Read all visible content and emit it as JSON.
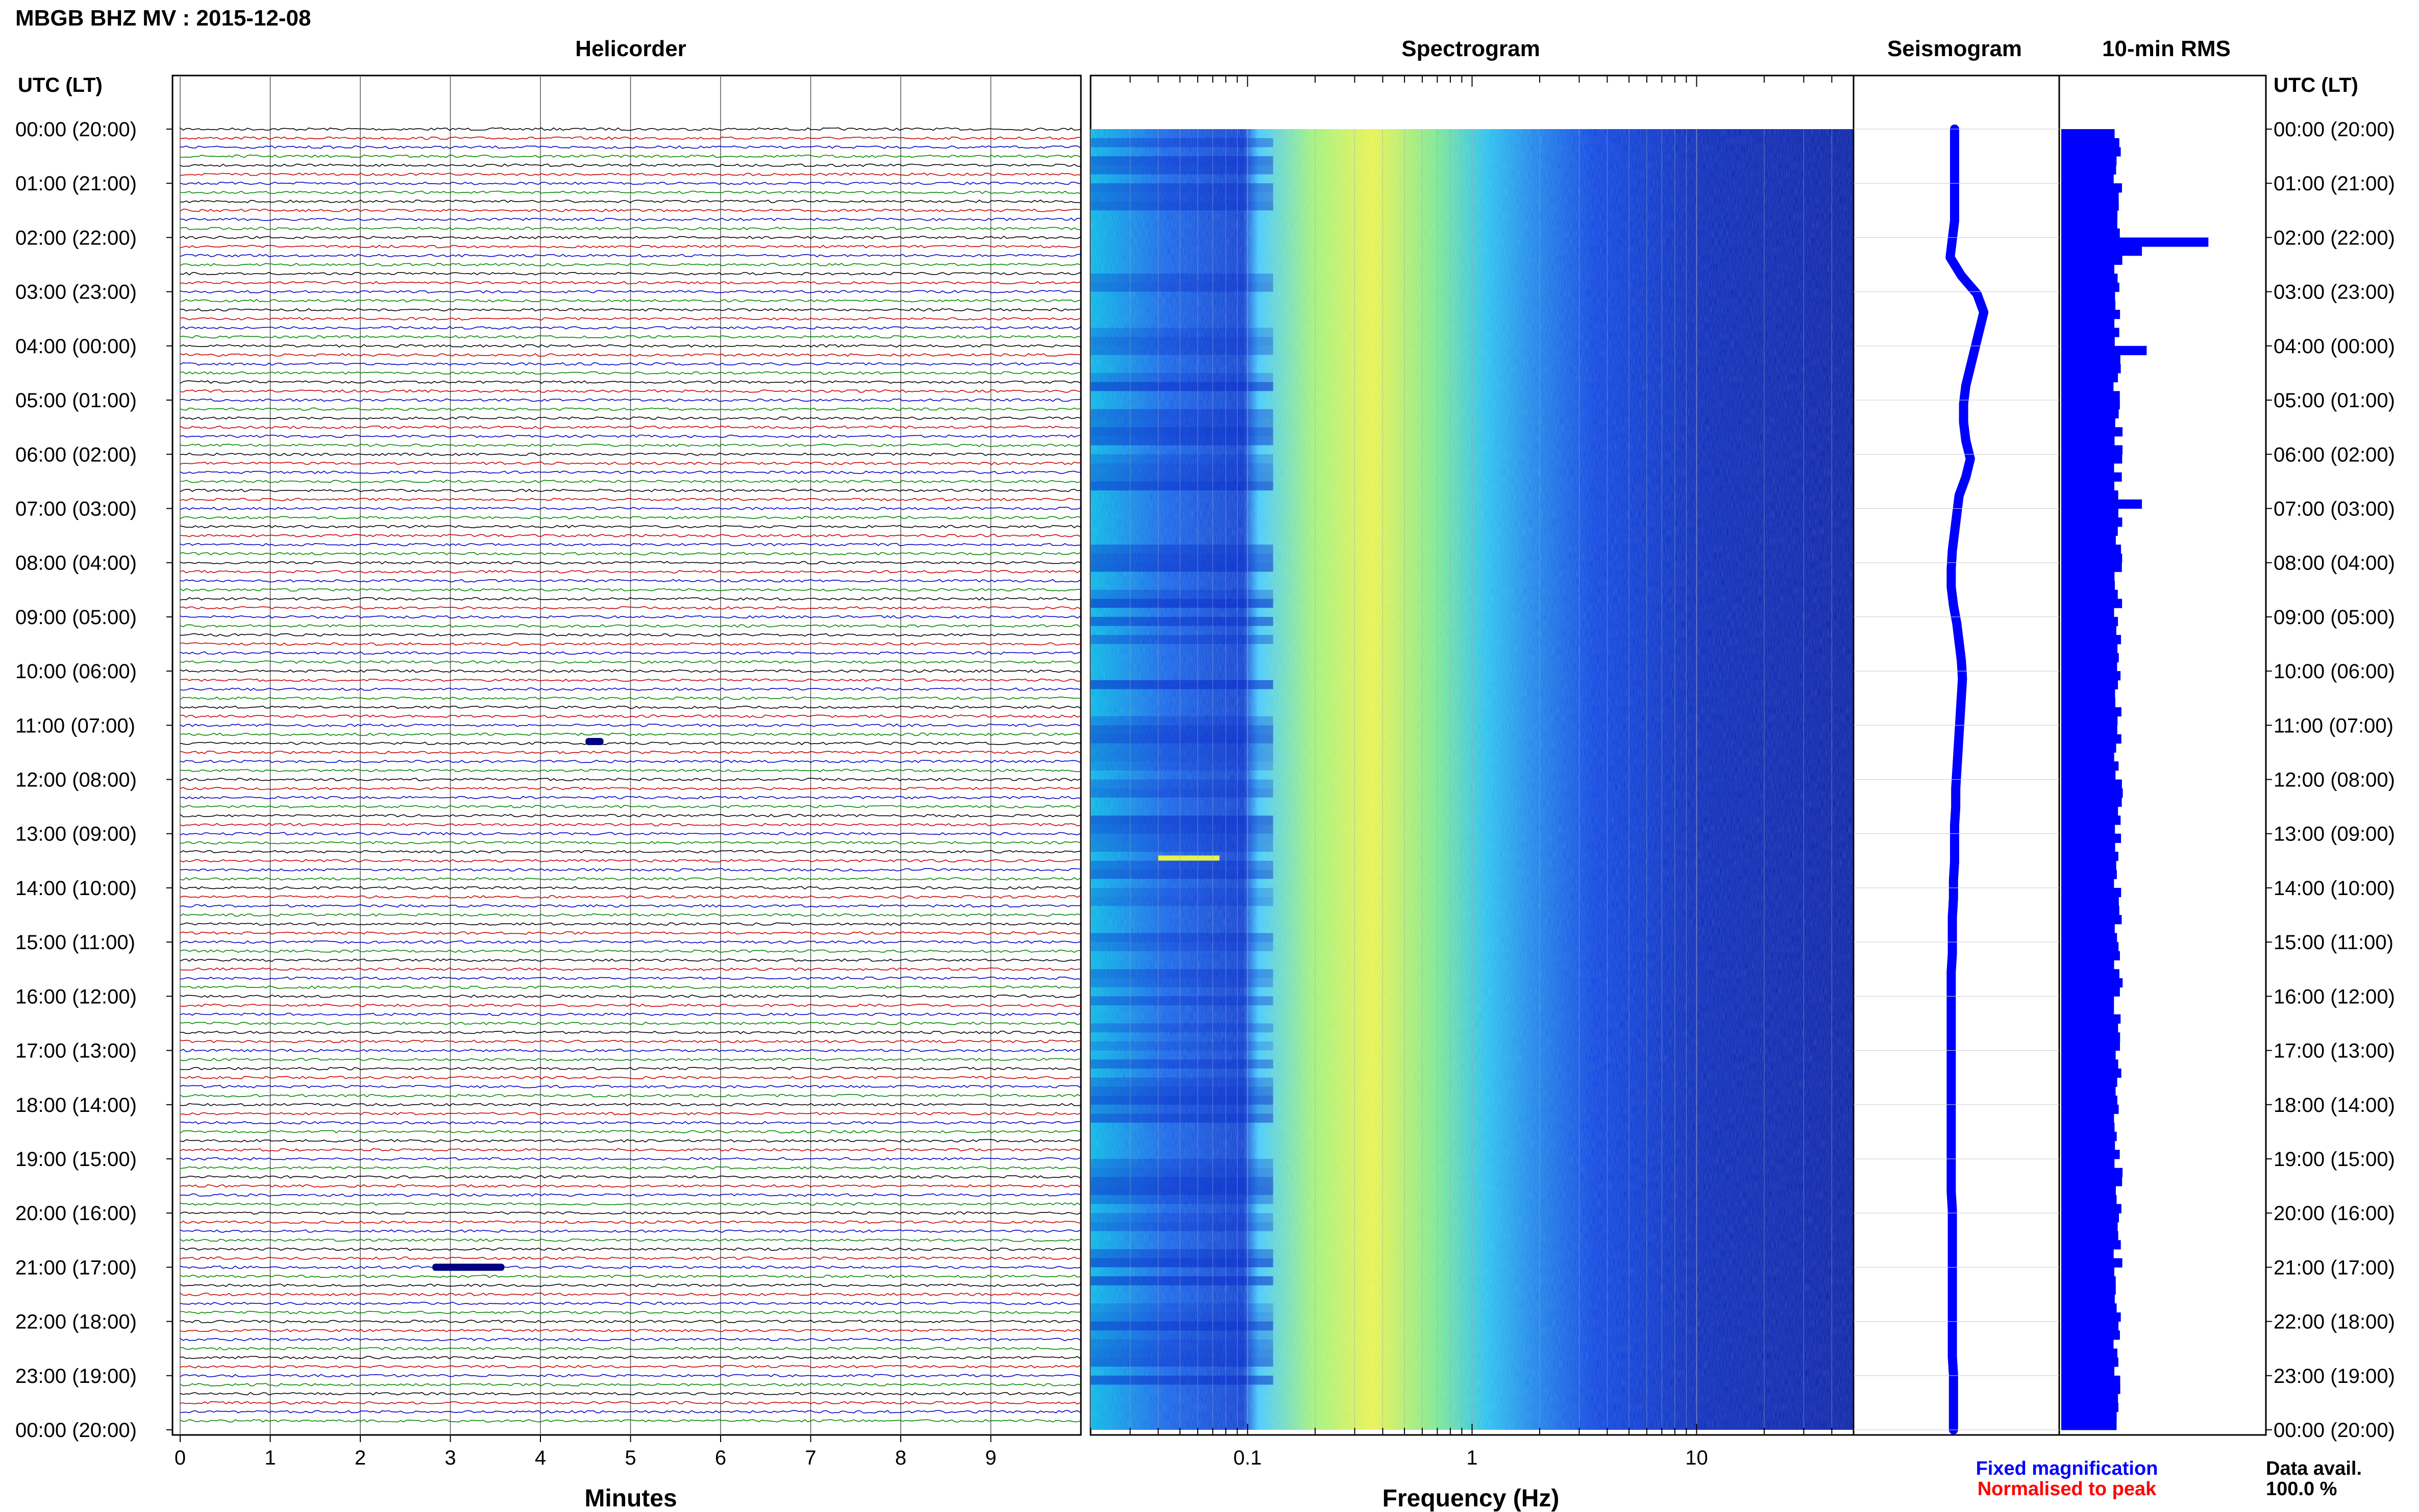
{
  "title": "MBGB BHZ MV : 2015-12-08",
  "colors": {
    "blue": "#0000ff",
    "red": "#ff0000",
    "trace_colors": [
      "#000000",
      "#cc0000",
      "#0000cc",
      "#008800"
    ]
  },
  "panels": {
    "helicorder": "Helicorder",
    "spectrogram": "Spectrogram",
    "seismogram": "Seismogram",
    "rms": "10-min RMS"
  },
  "left_axis_label": "UTC (LT)",
  "right_axis_label": "UTC (LT)",
  "time_labels": [
    "00:00 (20:00)",
    "01:00 (21:00)",
    "02:00 (22:00)",
    "03:00 (23:00)",
    "04:00 (00:00)",
    "05:00 (01:00)",
    "06:00 (02:00)",
    "07:00 (03:00)",
    "08:00 (04:00)",
    "09:00 (05:00)",
    "10:00 (06:00)",
    "11:00 (07:00)",
    "12:00 (08:00)",
    "13:00 (09:00)",
    "14:00 (10:00)",
    "15:00 (11:00)",
    "16:00 (12:00)",
    "17:00 (13:00)",
    "18:00 (14:00)",
    "19:00 (15:00)",
    "20:00 (16:00)",
    "21:00 (17:00)",
    "22:00 (18:00)",
    "23:00 (19:00)",
    "00:00 (20:00)"
  ],
  "helicorder_xlabel": "Minutes",
  "helicorder_ticks": [
    "0",
    "1",
    "2",
    "3",
    "4",
    "5",
    "6",
    "7",
    "8",
    "9"
  ],
  "spectrogram_xlabel": "Frequency (Hz)",
  "spectrogram_ticks": [
    "0.1",
    "1",
    "10"
  ],
  "legend": {
    "fixed": "Fixed magnification",
    "normalised": "Normalised to peak"
  },
  "data_avail": {
    "label": "Data avail.",
    "value": "100.0 %"
  },
  "chart_data": [
    {
      "type": "line",
      "name": "helicorder",
      "xlabel": "Minutes",
      "xlim": [
        0,
        10
      ],
      "ylim_hours": [
        0,
        24
      ],
      "traces_per_hour": 6,
      "events": [
        {
          "hour": 21.0,
          "minute_start": 2.8,
          "minute_end": 3.6
        },
        {
          "hour": 11.3,
          "minute_start": 4.5,
          "minute_end": 4.7
        }
      ]
    },
    {
      "type": "heatmap",
      "name": "spectrogram",
      "xlabel": "Frequency (Hz)",
      "xscale": "log",
      "xlim": [
        0.02,
        50
      ],
      "ylim_hours": [
        0,
        24
      ],
      "peak_band_hz": [
        0.2,
        0.5
      ],
      "line_hz": 0.05,
      "line_hour": 13.45
    },
    {
      "type": "line",
      "name": "seismogram",
      "ylim_hours": [
        0,
        24
      ],
      "x_offsets": [
        0,
        0,
        0,
        0,
        0,
        0,
        -2,
        -4,
        6,
        20,
        26,
        22,
        18,
        14,
        10,
        8,
        8,
        10,
        14,
        10,
        4,
        2,
        0,
        -2,
        -3,
        -3,
        -1,
        2,
        4,
        6,
        7,
        6,
        5,
        4,
        3,
        2,
        1,
        1,
        0,
        0,
        0,
        -1,
        -1,
        -2,
        -2,
        -2,
        -3,
        -3,
        -3,
        -3,
        -3,
        -3,
        -3,
        -3,
        -3,
        -3,
        -3,
        -3,
        -3,
        -2,
        -2,
        -2,
        -2,
        -2,
        -2,
        -2,
        -2,
        -2,
        -1,
        -1,
        -1,
        -1
      ]
    },
    {
      "type": "bar",
      "name": "10-min RMS",
      "ylim_hours": [
        0,
        24
      ],
      "bins_per_hour": 6,
      "base_value": 12,
      "spikes": [
        {
          "hour": 2.0,
          "value": 31
        },
        {
          "hour": 2.17,
          "value": 17
        },
        {
          "hour": 4.0,
          "value": 18
        },
        {
          "hour": 6.83,
          "value": 17
        }
      ]
    }
  ]
}
